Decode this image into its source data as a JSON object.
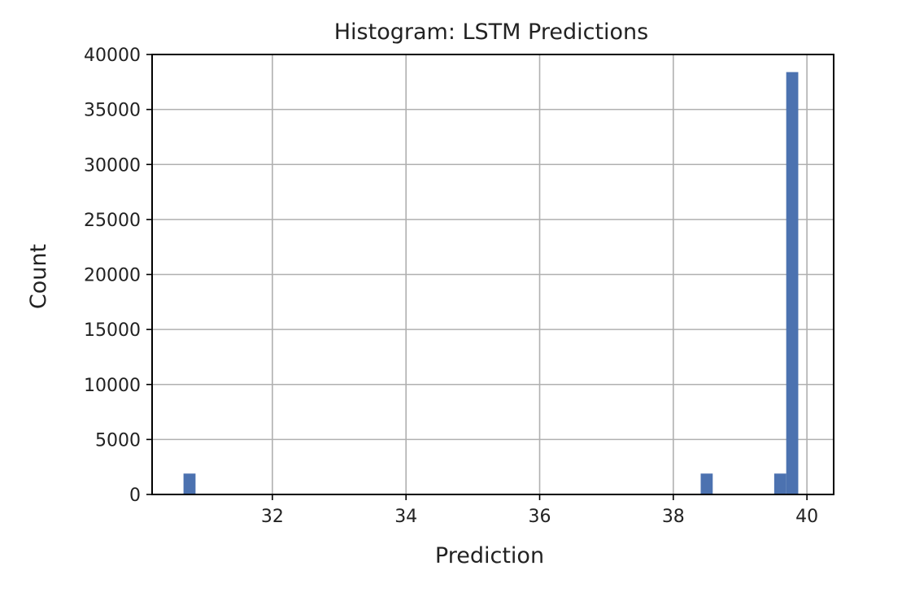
{
  "chart_data": {
    "type": "bar",
    "title": "Histogram: LSTM Predictions",
    "xlabel": "Prediction",
    "ylabel": "Count",
    "xlim": [
      30.2,
      40.4
    ],
    "ylim": [
      0,
      40000
    ],
    "x_ticks": [
      32,
      34,
      36,
      38,
      40
    ],
    "y_ticks": [
      0,
      5000,
      10000,
      15000,
      20000,
      25000,
      30000,
      35000,
      40000
    ],
    "grid": true,
    "bar_color": "#4c72b0",
    "bins": [
      {
        "x_start": 30.67,
        "x_end": 30.85,
        "count": 1900
      },
      {
        "x_start": 38.41,
        "x_end": 38.59,
        "count": 1900
      },
      {
        "x_start": 39.51,
        "x_end": 39.69,
        "count": 1900
      },
      {
        "x_start": 39.69,
        "x_end": 39.87,
        "count": 38400
      }
    ]
  }
}
